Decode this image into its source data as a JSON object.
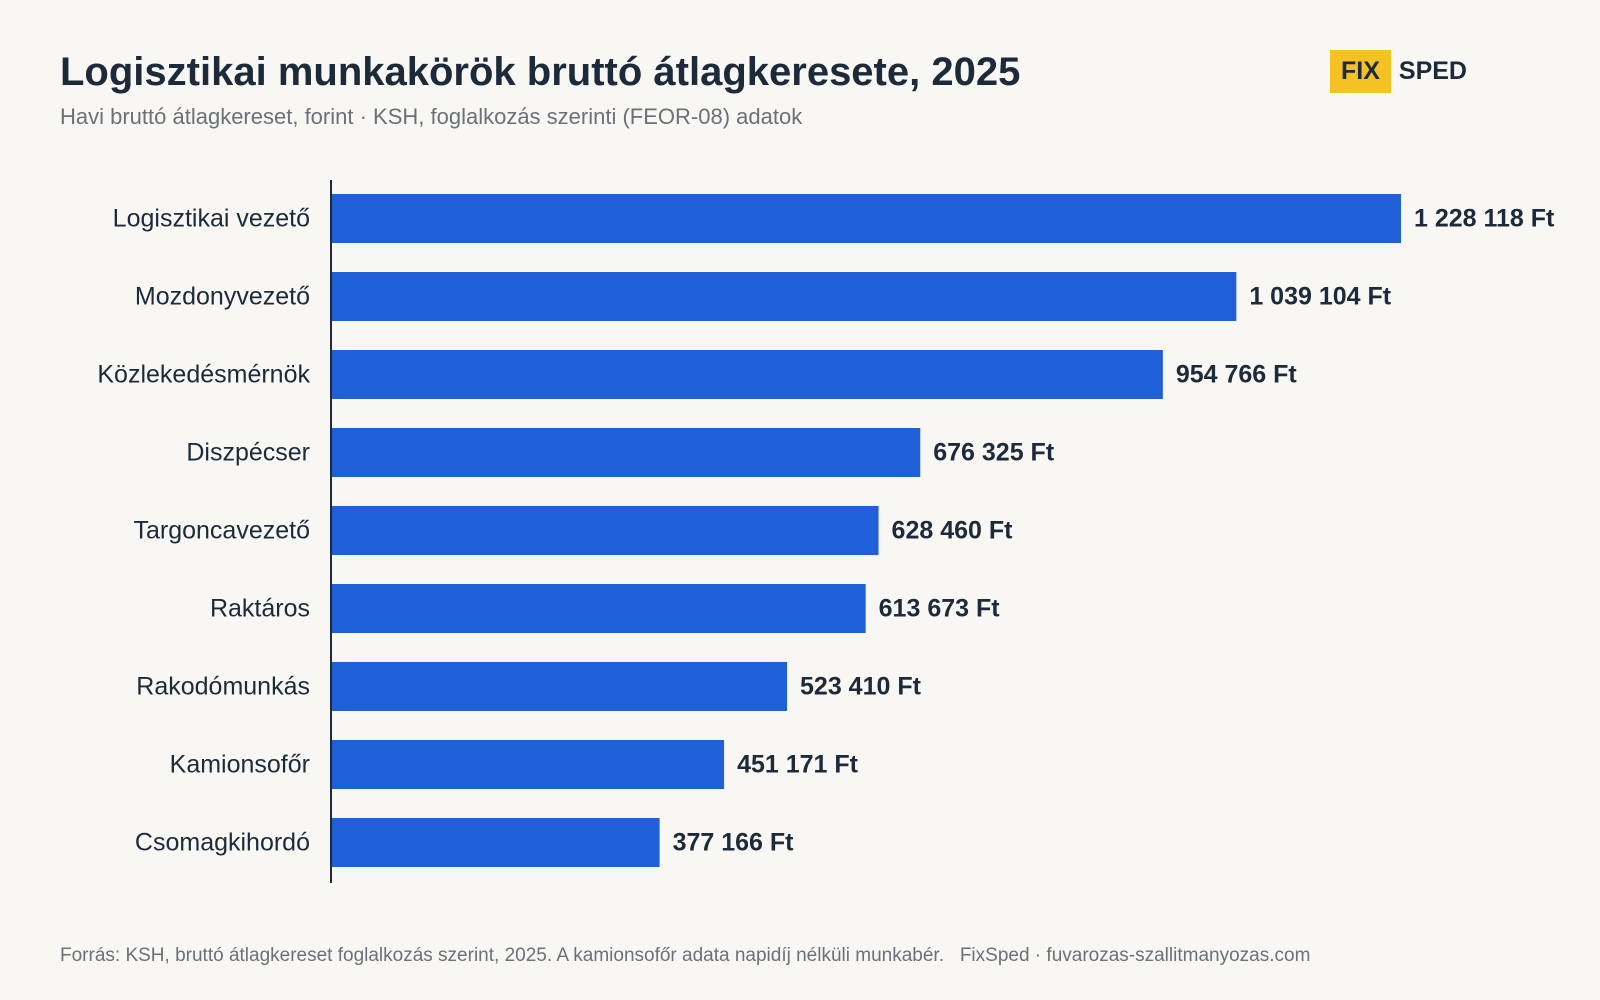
{
  "header": {
    "title": "Logisztikai munkakörök bruttó átlagkeresete, 2025",
    "subtitle": "Havi bruttó átlagkereset, forint · KSH, foglalkozás szerinti (FEOR-08) adatok"
  },
  "logo": {
    "box_text": "FIX",
    "text": "SPED",
    "box_color": "#f4c222"
  },
  "footer": {
    "source": "Forrás: KSH, bruttó átlagkereset foglalkozás szerint, 2025. A kamionsofőr adata napidíj nélküli munkabér.",
    "credit": "FixSped · fuvarozas-szallitmanyozas.com"
  },
  "chart_data": {
    "type": "bar",
    "orientation": "horizontal",
    "categories": [
      "Logisztikai vezető",
      "Mozdonyvezető",
      "Közlekedésmérnök",
      "Diszpécser",
      "Targoncavezető",
      "Raktáros",
      "Rakodómunkás",
      "Kamionsofőr",
      "Csomagkihordó"
    ],
    "values": [
      1228118,
      1039104,
      954766,
      676325,
      628460,
      613673,
      523410,
      451171,
      377166
    ],
    "value_labels": [
      "1 228 118 Ft",
      "1 039 104 Ft",
      "954 766 Ft",
      "676 325 Ft",
      "628 460 Ft",
      "613 673 Ft",
      "523 410 Ft",
      "451 171 Ft",
      "377 166 Ft"
    ],
    "xlim": [
      0,
      1228118
    ],
    "grid": false,
    "bar_color": "#1f5fd8",
    "text_color": "#1c2a3a"
  }
}
